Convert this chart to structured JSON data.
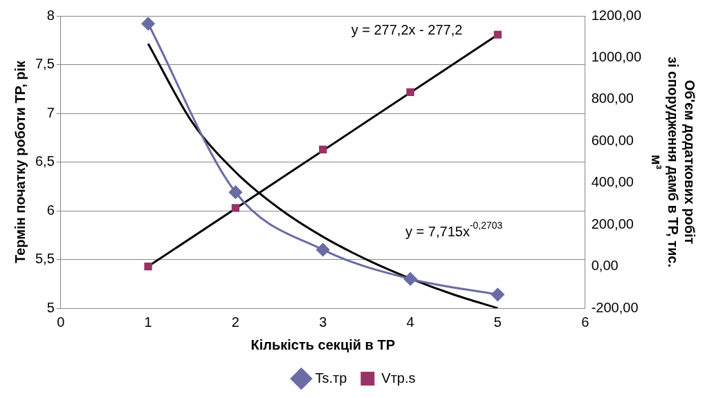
{
  "chart_data": {
    "type": "scatter",
    "xlabel": "Кількість секцій в ТР",
    "ylabel": "Термін початку роботи ТР, рік",
    "y2label": "Об'єм додаткових робіт\nзі спорудження дамб в ТР, тис.\nм³",
    "x": [
      1,
      2,
      3,
      4,
      5
    ],
    "series": [
      {
        "name": "Ts.тр",
        "type": "line",
        "color": "#6b6ba5",
        "marker": "diamond",
        "values": [
          7.92,
          6.19,
          5.6,
          5.3,
          5.14
        ]
      },
      {
        "name": "Vтр.s",
        "type": "scatter",
        "color": "#993366",
        "marker": "square",
        "axis": "y2",
        "values": [
          0,
          280,
          560,
          835,
          1110
        ]
      },
      {
        "type": "line",
        "color": "#000000",
        "marker": "none",
        "axis": "y2",
        "x": [
          1,
          5
        ],
        "values": [
          0,
          1110
        ]
      },
      {
        "type": "line",
        "color": "#000000",
        "marker": "none",
        "x": [
          1,
          1.5,
          2,
          2.5,
          3,
          3.5,
          4,
          4.5,
          5
        ],
        "values": [
          7.715,
          6.914,
          6.397,
          6.023,
          5.733,
          5.499,
          5.304,
          5.138,
          5.0
        ]
      }
    ],
    "xlim": [
      0,
      6
    ],
    "xticks": [
      0,
      1,
      2,
      3,
      4,
      5,
      6
    ],
    "ylim": [
      5,
      8
    ],
    "yticks": [
      5,
      {
        "value": 5.5,
        "label": "5,5"
      },
      6,
      {
        "value": 6.5,
        "label": "6,5"
      },
      7,
      {
        "value": 7.5,
        "label": "7,5"
      },
      8
    ],
    "y2lim": [
      -200,
      1200
    ],
    "y2ticks": [
      {
        "value": -200,
        "label": "-200,00"
      },
      {
        "value": 0,
        "label": "0,00"
      },
      {
        "value": 200,
        "label": "200,00"
      },
      {
        "value": 400,
        "label": "400,00"
      },
      {
        "value": 600,
        "label": "600,00"
      },
      {
        "value": 800,
        "label": "800,00"
      },
      {
        "value": 1000,
        "label": "1000,00"
      },
      {
        "value": 1200,
        "label": "1200,00"
      }
    ],
    "annotations": [
      "y = 277,2x - 277,2",
      "y = 7,715x$^{-0,2703}$"
    ],
    "grid": "y",
    "legend": "bottom"
  }
}
